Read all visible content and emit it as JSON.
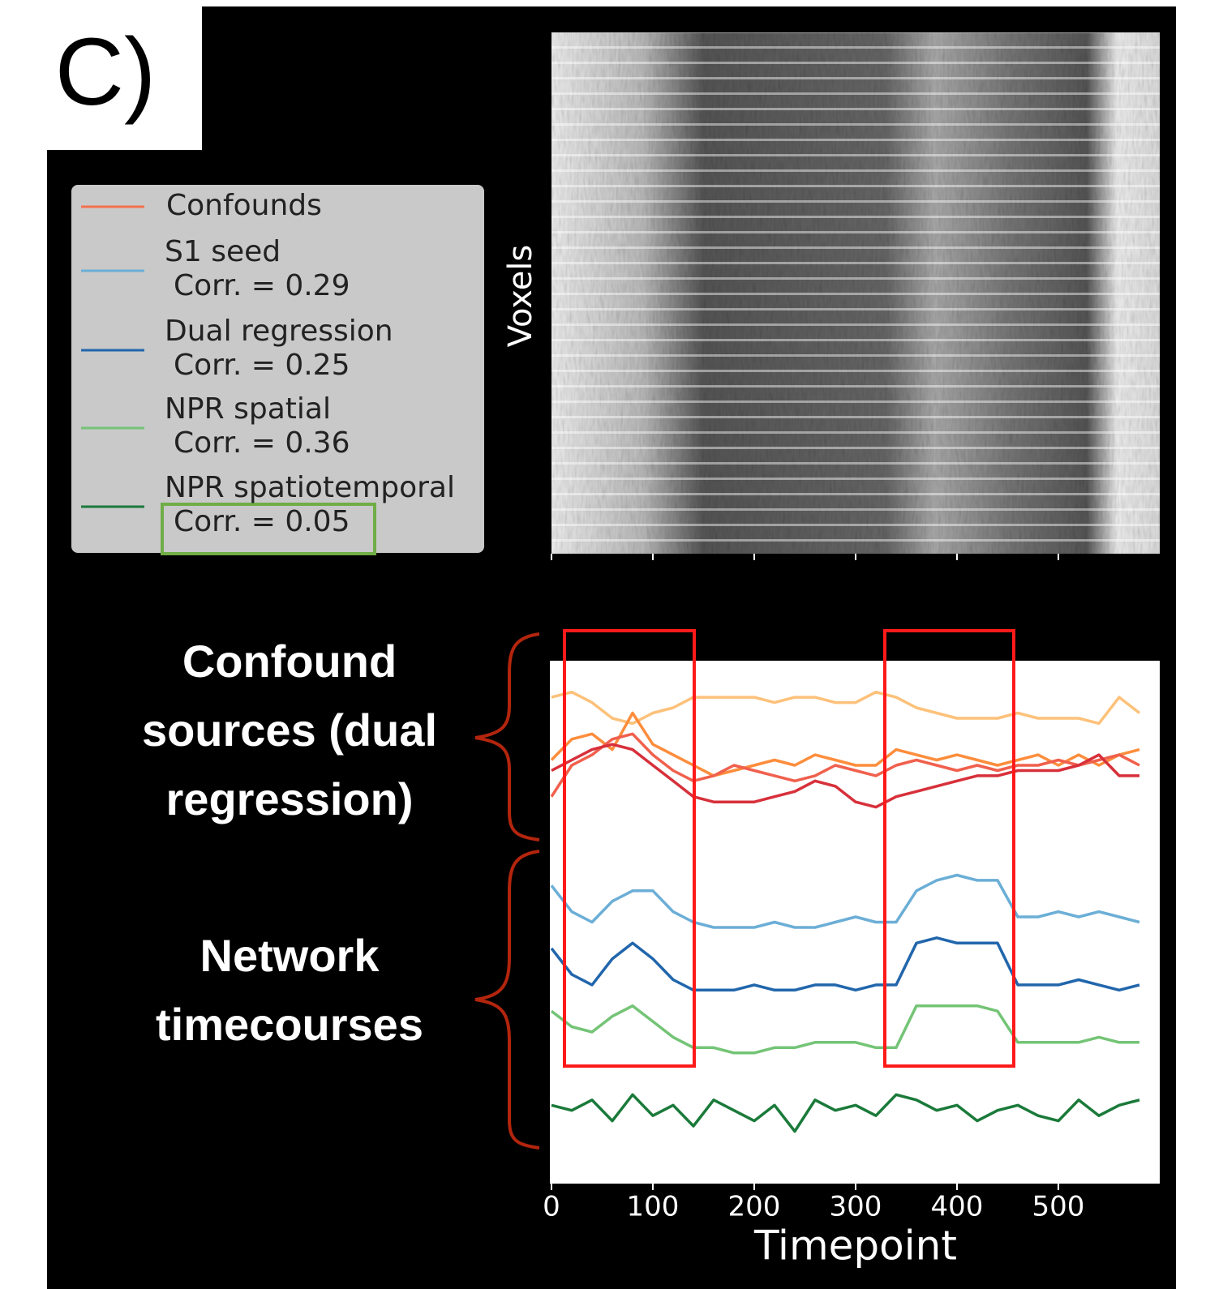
{
  "chart_data": {
    "type": "line",
    "panel_label": "C)",
    "heatmap_ylabel": "Voxels",
    "xlabel": "Timepoint",
    "xlim": [
      0,
      600
    ],
    "xticks": [
      0,
      100,
      200,
      300,
      400,
      500
    ],
    "ylim": [
      0,
      100
    ],
    "legend": [
      {
        "name": "Confounds",
        "color": "#f4714f"
      },
      {
        "name": "S1 seed",
        "corr": "Corr. = 0.29",
        "color": "#6baed6"
      },
      {
        "name": "Dual regression",
        "corr": "Corr. = 0.25",
        "color": "#2166ac"
      },
      {
        "name": "NPR spatial",
        "corr": "Corr. = 0.36",
        "color": "#74c476"
      },
      {
        "name": "NPR spatiotemporal",
        "corr": "Corr. = 0.05",
        "color": "#1a7a3a"
      }
    ],
    "annotations": [
      {
        "lines": [
          "Confound",
          "sources (dual",
          "regression)"
        ]
      },
      {
        "lines": [
          "Network",
          "timecourses"
        ]
      }
    ],
    "x": [
      0,
      20,
      40,
      60,
      80,
      100,
      120,
      140,
      160,
      180,
      200,
      220,
      240,
      260,
      280,
      300,
      320,
      340,
      360,
      380,
      400,
      420,
      440,
      460,
      480,
      500,
      520,
      540,
      560,
      580
    ],
    "series": [
      {
        "color": "#fdc17a",
        "values": [
          93,
          94,
          92,
          89,
          88,
          90,
          91,
          93,
          93,
          93,
          93,
          92,
          93,
          93,
          92,
          92,
          94,
          93,
          91,
          90,
          89,
          89,
          89,
          90,
          89,
          89,
          89,
          88,
          93,
          90
        ]
      },
      {
        "color": "#fd8d3c",
        "values": [
          81,
          85,
          86,
          83,
          90,
          84,
          82,
          80,
          78,
          79,
          80,
          81,
          80,
          82,
          81,
          80,
          80,
          83,
          82,
          81,
          82,
          81,
          80,
          81,
          82,
          80,
          82,
          80,
          82,
          83
        ]
      },
      {
        "color": "#f0604d",
        "values": [
          74,
          80,
          82,
          85,
          86,
          82,
          79,
          77,
          78,
          80,
          79,
          78,
          77,
          78,
          80,
          79,
          78,
          80,
          81,
          80,
          79,
          80,
          79,
          80,
          80,
          81,
          80,
          81,
          82,
          80
        ]
      },
      {
        "color": "#d7303a",
        "values": [
          79,
          81,
          83,
          84,
          83,
          80,
          77,
          74,
          73,
          73,
          73,
          74,
          75,
          77,
          76,
          73,
          72,
          74,
          75,
          76,
          77,
          78,
          78,
          79,
          79,
          79,
          80,
          82,
          78,
          78
        ]
      },
      {
        "color": "#6baed6",
        "values": [
          57,
          52,
          50,
          54,
          56,
          56,
          52,
          50,
          49,
          49,
          49,
          50,
          49,
          49,
          50,
          51,
          50,
          50,
          56,
          58,
          59,
          58,
          58,
          51,
          51,
          52,
          51,
          52,
          51,
          50
        ]
      },
      {
        "color": "#2166ac",
        "values": [
          45,
          40,
          38,
          43,
          46,
          43,
          39,
          37,
          37,
          37,
          38,
          37,
          37,
          38,
          38,
          37,
          38,
          38,
          46,
          47,
          46,
          46,
          46,
          38,
          38,
          38,
          39,
          38,
          37,
          38
        ]
      },
      {
        "color": "#74c476",
        "values": [
          33,
          30,
          29,
          32,
          34,
          31,
          28,
          26,
          26,
          25,
          25,
          26,
          26,
          27,
          27,
          27,
          26,
          26,
          34,
          34,
          34,
          34,
          33,
          27,
          27,
          27,
          27,
          28,
          27,
          27
        ]
      },
      {
        "color": "#1a7a3a",
        "values": [
          15,
          14,
          16,
          12,
          17,
          13,
          15,
          11,
          16,
          14,
          12,
          15,
          10,
          16,
          14,
          15,
          13,
          17,
          16,
          14,
          15,
          12,
          14,
          15,
          13,
          12,
          16,
          13,
          15,
          16
        ]
      }
    ]
  }
}
